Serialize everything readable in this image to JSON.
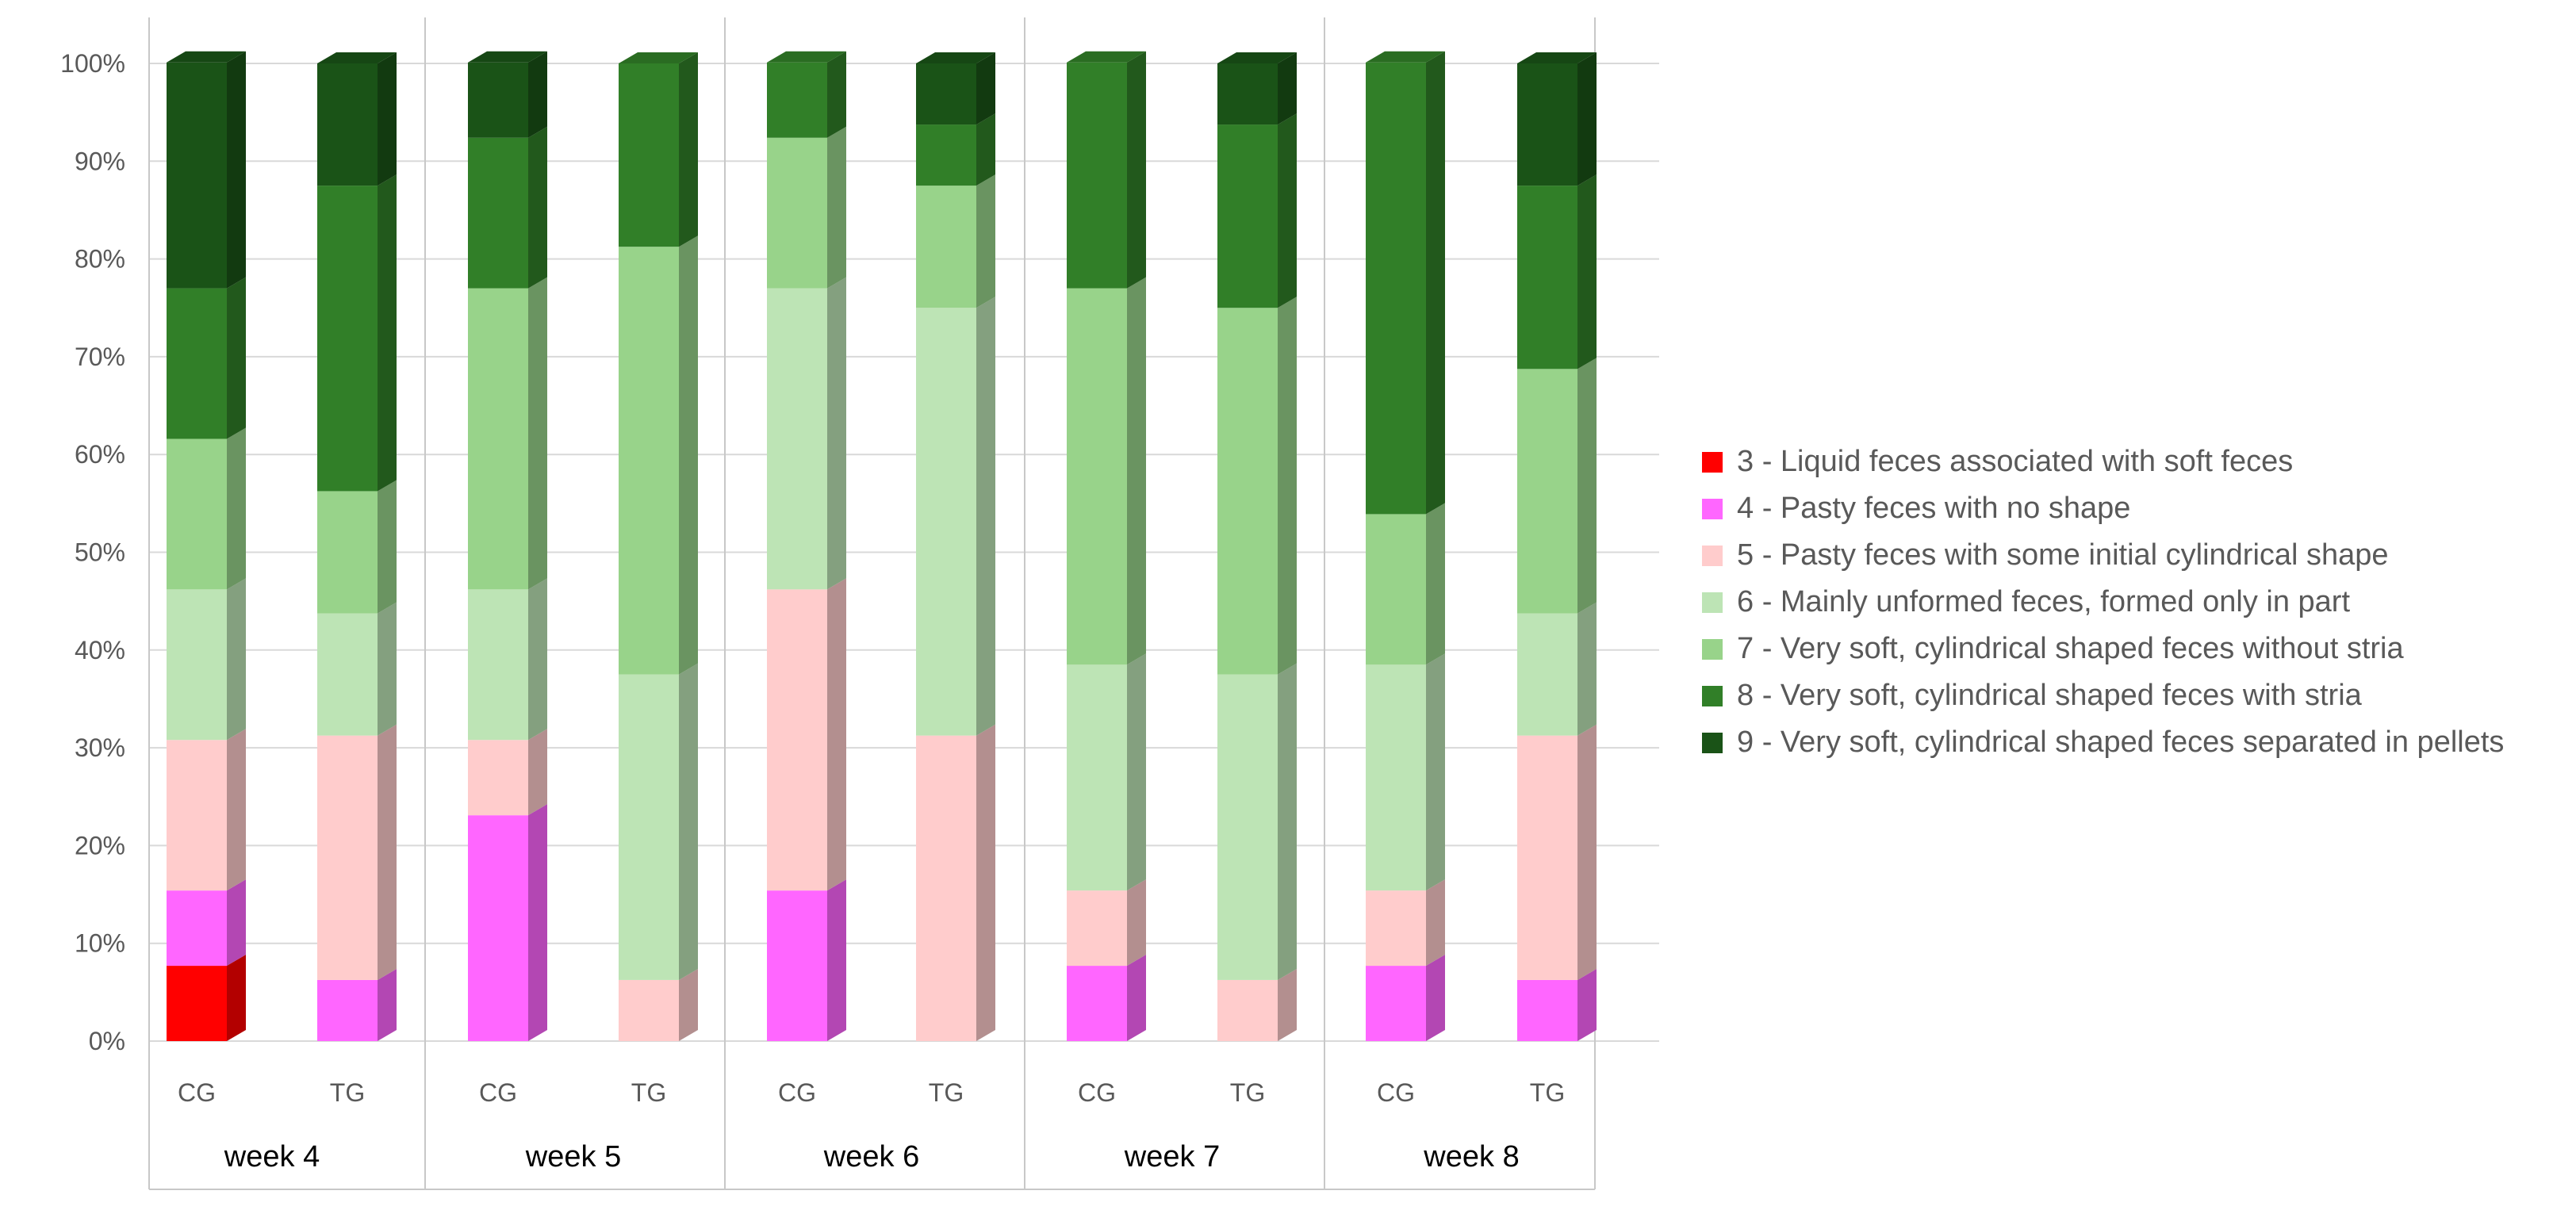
{
  "chart_data": {
    "type": "bar",
    "stacked": true,
    "percent": true,
    "title": "",
    "xlabel": "",
    "ylabel": "",
    "ylim": [
      0,
      100
    ],
    "y_ticks": [
      "0%",
      "10%",
      "20%",
      "30%",
      "40%",
      "50%",
      "60%",
      "70%",
      "80%",
      "90%",
      "100%"
    ],
    "grid": true,
    "legend_position": "right",
    "groups": [
      "week 4",
      "week 5",
      "week 6",
      "week 7",
      "week 8"
    ],
    "categories": [
      "CG",
      "TG",
      "CG",
      "TG",
      "CG",
      "TG",
      "CG",
      "TG",
      "CG",
      "TG"
    ],
    "series": [
      {
        "name": "3 - Liquid feces associated with soft feces",
        "color": "#ff0000",
        "values": [
          7.7,
          0,
          0,
          0,
          0,
          0,
          0,
          0,
          0,
          0
        ]
      },
      {
        "name": "4 - Pasty feces with no shape",
        "color": "#ff66ff",
        "values": [
          7.7,
          6.25,
          23.1,
          0,
          15.4,
          0,
          7.7,
          0,
          7.7,
          6.25
        ]
      },
      {
        "name": "5 - Pasty feces with some initial cylindrical shape",
        "color": "#ffcccc",
        "values": [
          15.4,
          25,
          7.7,
          6.25,
          30.8,
          31.25,
          7.7,
          6.25,
          7.7,
          25
        ]
      },
      {
        "name": "6 - Mainly unformed feces, formed only in part",
        "color": "#bde4b5",
        "values": [
          15.4,
          12.5,
          15.4,
          31.25,
          30.8,
          43.75,
          23.1,
          31.25,
          23.1,
          12.5
        ]
      },
      {
        "name": "7 - Very soft, cylindrical shaped feces without stria",
        "color": "#98d38a",
        "values": [
          15.4,
          12.5,
          30.8,
          43.75,
          15.4,
          12.5,
          38.5,
          37.5,
          15.4,
          25
        ]
      },
      {
        "name": "8 - Very soft, cylindrical shaped feces with stria",
        "color": "#317f28",
        "values": [
          15.4,
          31.25,
          15.4,
          18.75,
          7.7,
          6.25,
          23.1,
          18.75,
          46.2,
          18.75
        ]
      },
      {
        "name": "9 - Very soft, cylindrical shaped feces separated in pellets",
        "color": "#1a5317",
        "values": [
          23.1,
          12.5,
          7.7,
          0,
          0,
          6.25,
          0,
          6.25,
          0,
          12.5
        ]
      }
    ]
  }
}
